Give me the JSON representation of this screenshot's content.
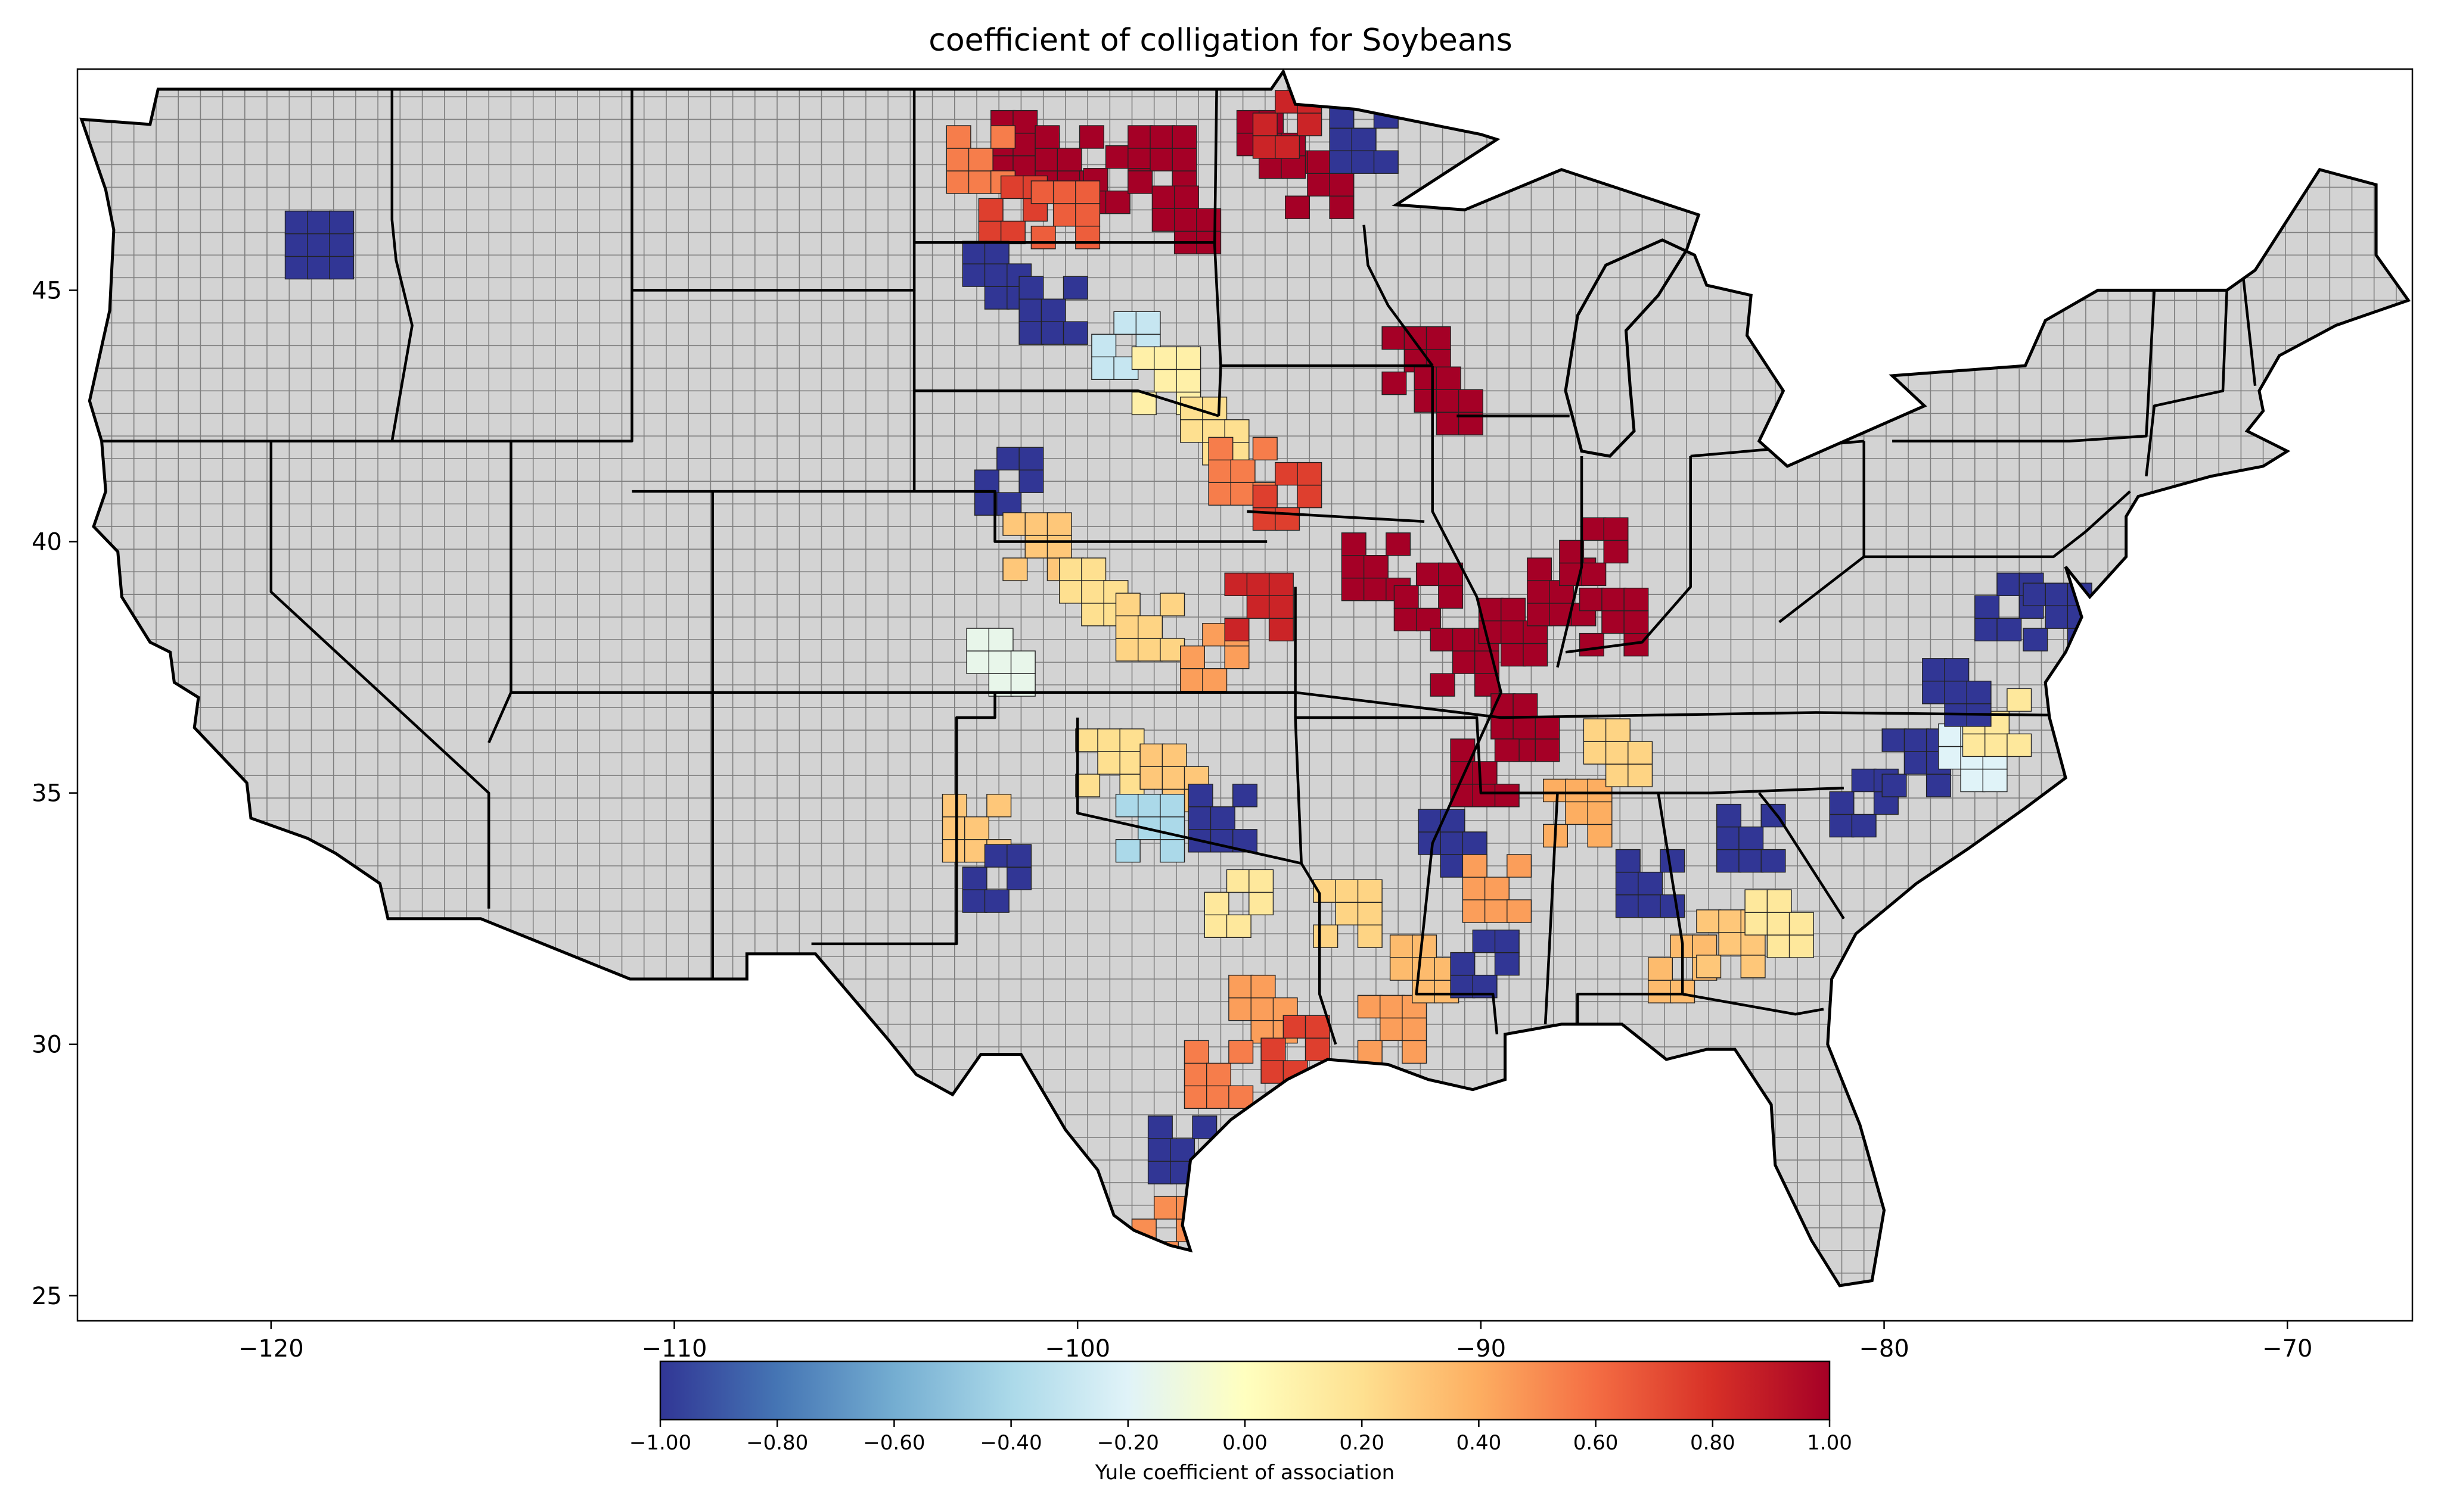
{
  "title": "coefficient of colligation for Soybeans",
  "chart_data": {
    "type": "choropleth",
    "title": "coefficient of colligation for Soybeans",
    "x_ticks": [
      -120,
      -110,
      -100,
      -90,
      -80,
      -70
    ],
    "x_tick_labels": [
      "−120",
      "−110",
      "−100",
      "−90",
      "−80",
      "−70"
    ],
    "y_ticks": [
      25,
      30,
      35,
      40,
      45
    ],
    "y_tick_labels": [
      "25",
      "30",
      "35",
      "40",
      "45"
    ],
    "xlim": [
      -124.8,
      -66.9
    ],
    "ylim": [
      24.5,
      49.4
    ],
    "no_data_color": "#d3d3d3",
    "colorbar": {
      "label": "Yule coefficient of association",
      "range": [
        -1.0,
        1.0
      ],
      "ticks": [
        -1.0,
        -0.8,
        -0.6,
        -0.4,
        -0.2,
        0.0,
        0.2,
        0.4,
        0.6,
        0.8,
        1.0
      ],
      "tick_labels": [
        "−1.00",
        "−0.80",
        "−0.60",
        "−0.40",
        "−0.20",
        "0.00",
        "0.20",
        "0.40",
        "0.60",
        "0.80",
        "1.00"
      ],
      "colormap": "RdYlBu_r",
      "stops": [
        "#313695",
        "#4575b4",
        "#74add1",
        "#abd9e9",
        "#e0f3f8",
        "#ffffbf",
        "#fee090",
        "#fdae61",
        "#f46d43",
        "#d73027",
        "#a50026"
      ]
    },
    "regions": [
      {
        "lon": -118.8,
        "lat": 45.9,
        "value": -1.0
      },
      {
        "lon": -101.3,
        "lat": 47.9,
        "value": 1.0
      },
      {
        "lon": -100.2,
        "lat": 47.6,
        "value": 1.0
      },
      {
        "lon": -99.0,
        "lat": 47.2,
        "value": 1.0
      },
      {
        "lon": -97.9,
        "lat": 47.6,
        "value": 1.0
      },
      {
        "lon": -97.3,
        "lat": 46.4,
        "value": 1.0
      },
      {
        "lon": -102.4,
        "lat": 47.6,
        "value": 0.55
      },
      {
        "lon": -101.6,
        "lat": 46.6,
        "value": 0.75
      },
      {
        "lon": -100.3,
        "lat": 46.5,
        "value": 0.65
      },
      {
        "lon": -102.0,
        "lat": 45.3,
        "value": -1.0
      },
      {
        "lon": -100.6,
        "lat": 44.6,
        "value": -1.0
      },
      {
        "lon": -98.8,
        "lat": 43.9,
        "value": -0.3
      },
      {
        "lon": -97.8,
        "lat": 43.2,
        "value": 0.1
      },
      {
        "lon": -96.6,
        "lat": 42.2,
        "value": 0.2
      },
      {
        "lon": -95.9,
        "lat": 41.4,
        "value": 0.55
      },
      {
        "lon": -94.8,
        "lat": 40.9,
        "value": 0.75
      },
      {
        "lon": -94.0,
        "lat": 47.1,
        "value": 1.0
      },
      {
        "lon": -95.2,
        "lat": 47.9,
        "value": 1.0
      },
      {
        "lon": -92.9,
        "lat": 48.0,
        "value": -1.0
      },
      {
        "lon": -94.8,
        "lat": 48.3,
        "value": 0.85
      },
      {
        "lon": -91.6,
        "lat": 43.6,
        "value": 1.0
      },
      {
        "lon": -90.8,
        "lat": 42.8,
        "value": 1.0
      },
      {
        "lon": -92.6,
        "lat": 39.5,
        "value": 1.0
      },
      {
        "lon": -91.3,
        "lat": 38.9,
        "value": 1.0
      },
      {
        "lon": -90.4,
        "lat": 37.6,
        "value": 1.0
      },
      {
        "lon": -89.2,
        "lat": 38.2,
        "value": 1.0
      },
      {
        "lon": -88.0,
        "lat": 39.0,
        "value": 1.0
      },
      {
        "lon": -87.2,
        "lat": 39.8,
        "value": 1.0
      },
      {
        "lon": -86.7,
        "lat": 38.4,
        "value": 1.0
      },
      {
        "lon": -88.9,
        "lat": 36.3,
        "value": 1.0
      },
      {
        "lon": -89.9,
        "lat": 35.4,
        "value": 1.0
      },
      {
        "lon": -101.7,
        "lat": 41.2,
        "value": -1.0
      },
      {
        "lon": -101.0,
        "lat": 39.9,
        "value": 0.3
      },
      {
        "lon": -99.6,
        "lat": 39.0,
        "value": 0.2
      },
      {
        "lon": -98.2,
        "lat": 38.3,
        "value": 0.25
      },
      {
        "lon": -96.6,
        "lat": 37.7,
        "value": 0.45
      },
      {
        "lon": -95.5,
        "lat": 38.7,
        "value": 0.85
      },
      {
        "lon": -101.9,
        "lat": 37.6,
        "value": -0.15
      },
      {
        "lon": -102.5,
        "lat": 34.3,
        "value": 0.3
      },
      {
        "lon": -102.0,
        "lat": 33.3,
        "value": -1.0
      },
      {
        "lon": -99.2,
        "lat": 35.6,
        "value": 0.2
      },
      {
        "lon": -97.6,
        "lat": 35.3,
        "value": 0.3
      },
      {
        "lon": -96.4,
        "lat": 34.5,
        "value": -1.0
      },
      {
        "lon": -96.0,
        "lat": 32.8,
        "value": 0.15
      },
      {
        "lon": -98.2,
        "lat": 34.3,
        "value": -0.4
      },
      {
        "lon": -95.4,
        "lat": 30.7,
        "value": 0.45
      },
      {
        "lon": -96.5,
        "lat": 29.4,
        "value": 0.55
      },
      {
        "lon": -94.6,
        "lat": 29.9,
        "value": 0.75
      },
      {
        "lon": -92.2,
        "lat": 30.3,
        "value": 0.45
      },
      {
        "lon": -91.4,
        "lat": 31.5,
        "value": 0.35
      },
      {
        "lon": -97.4,
        "lat": 27.9,
        "value": -1.0
      },
      {
        "lon": -97.8,
        "lat": 26.3,
        "value": 0.5
      },
      {
        "lon": -93.3,
        "lat": 32.6,
        "value": 0.25
      },
      {
        "lon": -90.7,
        "lat": 34.0,
        "value": -1.0
      },
      {
        "lon": -89.6,
        "lat": 33.1,
        "value": 0.45
      },
      {
        "lon": -89.9,
        "lat": 31.6,
        "value": -1.0
      },
      {
        "lon": -87.6,
        "lat": 34.6,
        "value": 0.4
      },
      {
        "lon": -86.6,
        "lat": 35.8,
        "value": 0.25
      },
      {
        "lon": -85.8,
        "lat": 33.2,
        "value": -1.0
      },
      {
        "lon": -85.0,
        "lat": 31.5,
        "value": 0.35
      },
      {
        "lon": -83.8,
        "lat": 32.0,
        "value": 0.3
      },
      {
        "lon": -82.6,
        "lat": 32.4,
        "value": 0.15
      },
      {
        "lon": -83.3,
        "lat": 34.1,
        "value": -1.0
      },
      {
        "lon": -80.5,
        "lat": 34.8,
        "value": -1.0
      },
      {
        "lon": -79.2,
        "lat": 35.6,
        "value": -1.0
      },
      {
        "lon": -77.8,
        "lat": 35.7,
        "value": -0.2
      },
      {
        "lon": -77.2,
        "lat": 36.4,
        "value": 0.15
      },
      {
        "lon": -76.9,
        "lat": 38.7,
        "value": -1.0
      },
      {
        "lon": -75.7,
        "lat": 38.5,
        "value": -1.0
      },
      {
        "lon": -78.2,
        "lat": 37.0,
        "value": -1.0
      }
    ]
  }
}
